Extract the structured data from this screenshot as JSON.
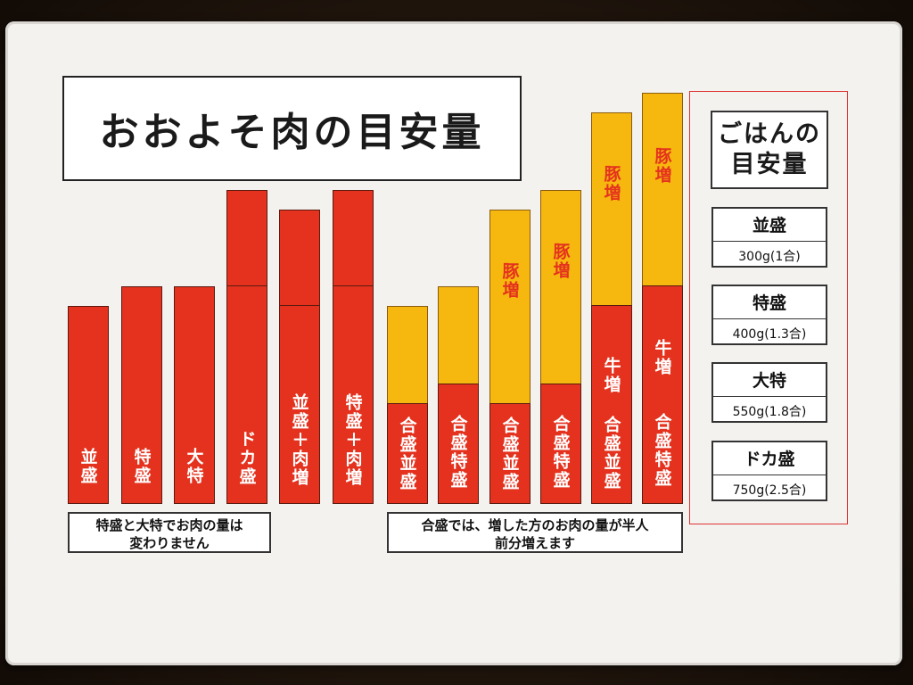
{
  "title": "おおよそ肉の目安量",
  "colors": {
    "beef": "#e4321e",
    "pork": "#f6b80e"
  },
  "bars": [
    {
      "label": "並盛",
      "pork_label": ""
    },
    {
      "label": "特盛",
      "pork_label": ""
    },
    {
      "label": "大特",
      "pork_label": ""
    },
    {
      "label": "ドカ盛",
      "pork_label": ""
    },
    {
      "label": "並盛＋肉増",
      "pork_label": ""
    },
    {
      "label": "特盛＋肉増",
      "pork_label": ""
    },
    {
      "label": "合盛並盛",
      "pork_label": ""
    },
    {
      "label": "合盛特盛",
      "pork_label": ""
    },
    {
      "label": "合盛並盛",
      "pork_label": "豚増"
    },
    {
      "label": "合盛特盛",
      "pork_label": "豚増"
    },
    {
      "label": "合盛並盛",
      "beef_label": "牛増",
      "pork_label": "豚増"
    },
    {
      "label": "合盛特盛",
      "beef_label": "牛増",
      "pork_label": "豚増"
    }
  ],
  "notes": {
    "left": [
      "特盛と大特でお肉の量は",
      "変わりません"
    ],
    "right": [
      "合盛では、増した方のお肉の量が半人",
      "前分増えます"
    ]
  },
  "rice": {
    "title_line1": "ごはんの",
    "title_line2": "目安量",
    "items": [
      {
        "name": "並盛",
        "amount": "300g(1合)"
      },
      {
        "name": "特盛",
        "amount": "400g(1.3合)"
      },
      {
        "name": "大特",
        "amount": "550g(1.8合)"
      },
      {
        "name": "ドカ盛",
        "amount": "750g(2.5合)"
      }
    ]
  }
}
